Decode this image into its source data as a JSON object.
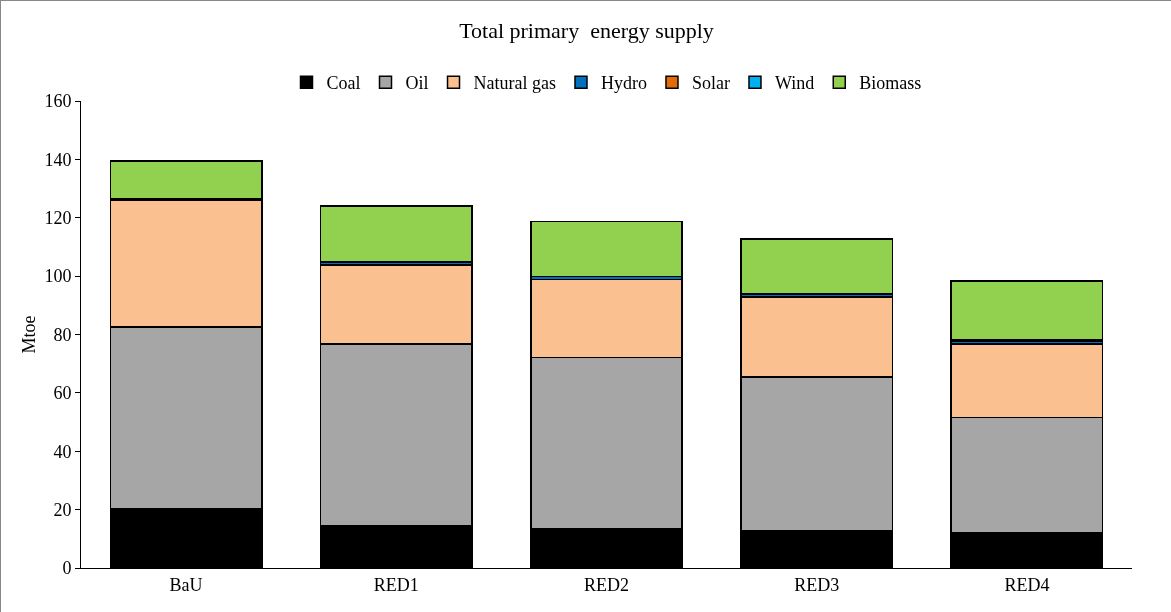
{
  "chart_data": {
    "type": "bar",
    "title": "Total primary  energy supply",
    "ylabel": "Mtoe",
    "categories": [
      "BaU",
      "RED1",
      "RED2",
      "RED3",
      "RED4"
    ],
    "stacked": true,
    "ylim": [
      0,
      160
    ],
    "yticks": [
      0,
      20,
      40,
      60,
      80,
      100,
      120,
      140,
      160
    ],
    "grid": false,
    "legend": "top",
    "series": [
      {
        "name": "Coal",
        "color": "#000000",
        "values": [
          20.3,
          14.6,
          13.5,
          12.8,
          12.1
        ]
      },
      {
        "name": "Oil",
        "color": "#a6a6a6",
        "values": [
          62.2,
          62.2,
          58.7,
          52.6,
          39.5
        ]
      },
      {
        "name": "Natural gas",
        "color": "#fac090",
        "values": [
          43.5,
          27.0,
          26.6,
          27.4,
          25.2
        ]
      },
      {
        "name": "Hydro",
        "color": "#0070c0",
        "values": [
          0.5,
          1.0,
          1.0,
          1.0,
          0.8
        ]
      },
      {
        "name": "Solar",
        "color": "#e36c09",
        "values": [
          0,
          0,
          0,
          0,
          0.1
        ]
      },
      {
        "name": "Wind",
        "color": "#00b0f0",
        "values": [
          0,
          0,
          0,
          0,
          0.5
        ]
      },
      {
        "name": "Biomass",
        "color": "#92d050",
        "values": [
          12.9,
          19.3,
          19.0,
          18.9,
          20.1
        ]
      }
    ]
  }
}
